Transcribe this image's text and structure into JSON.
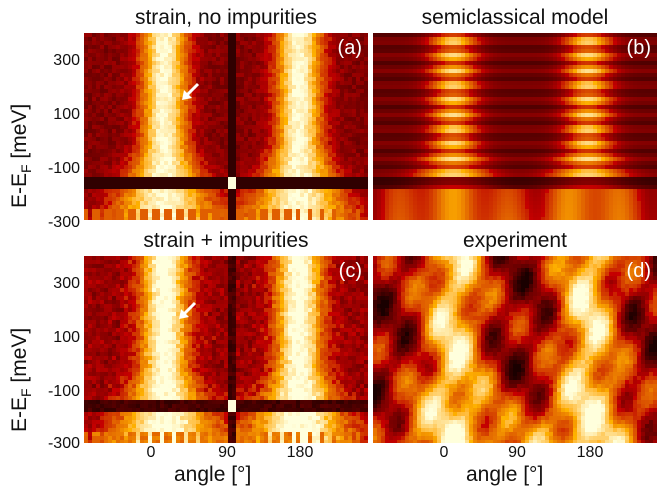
{
  "figure": {
    "x_axis_label": "angle [°]",
    "y_axis_label_main": "E-E",
    "y_axis_label_sub": "F",
    "y_axis_label_unit": " [meV]",
    "y_ticks": [
      "300",
      "100",
      "-100",
      "-300"
    ],
    "x_ticks": [
      "0",
      "90",
      "180"
    ]
  },
  "panels": [
    {
      "id": "a",
      "title": "strain, no impurities",
      "label": "(a)"
    },
    {
      "id": "b",
      "title": "semiclassical model",
      "label": "(b)"
    },
    {
      "id": "c",
      "title": "strain + impurities",
      "label": "(c)"
    },
    {
      "id": "d",
      "title": "experiment",
      "label": "(d)"
    }
  ],
  "chart_data": [
    {
      "type": "heatmap",
      "title": "strain, no impurities",
      "panel_label": "(a)",
      "xlabel": "",
      "ylabel": "E-E_F [meV]",
      "xticks": [
        0,
        90,
        180
      ],
      "yticks": [
        300,
        100,
        -100,
        -300
      ],
      "xlim": [
        -105,
        275
      ],
      "ylim": [
        -300,
        420
      ],
      "features": {
        "bright_bands_center_deg": [
          0,
          180
        ],
        "dark_band_meV": [
          -175,
          -120
        ],
        "arrow_annotation": "inner band edge"
      }
    },
    {
      "type": "heatmap",
      "title": "semiclassical model",
      "panel_label": "(b)",
      "xticks": [
        0,
        90,
        180
      ],
      "yticks": [
        300,
        100,
        -100,
        -300
      ],
      "xlim": [
        -105,
        275
      ],
      "ylim": [
        -300,
        420
      ],
      "features": {
        "bright_bands_center_deg": [
          0,
          180
        ],
        "dark_band_meV": [
          -175,
          -120
        ]
      }
    },
    {
      "type": "heatmap",
      "title": "strain + impurities",
      "panel_label": "(c)",
      "xlabel": "angle [°]",
      "ylabel": "E-E_F [meV]",
      "xticks": [
        0,
        90,
        180
      ],
      "yticks": [
        300,
        100,
        -100,
        -300
      ],
      "xlim": [
        -105,
        275
      ],
      "ylim": [
        -300,
        420
      ],
      "features": {
        "bright_bands_center_deg": [
          0,
          180
        ],
        "dark_band_meV": [
          -170,
          -125
        ],
        "arrow_annotation": "inner band edge"
      }
    },
    {
      "type": "heatmap",
      "title": "experiment",
      "panel_label": "(d)",
      "xlabel": "angle [°]",
      "xticks": [
        0,
        90,
        180
      ],
      "yticks": [
        300,
        100,
        -100,
        -300
      ],
      "xlim": [
        -105,
        275
      ],
      "ylim": [
        -300,
        420
      ],
      "features": {
        "bright_bands_center_deg": [
          0,
          180
        ],
        "noisy": true
      }
    }
  ],
  "colors": {
    "colormap": "hot",
    "dark": "#1a0000",
    "mid": "#b41e00",
    "bright": "#ffd94a",
    "white": "#ffffff"
  }
}
